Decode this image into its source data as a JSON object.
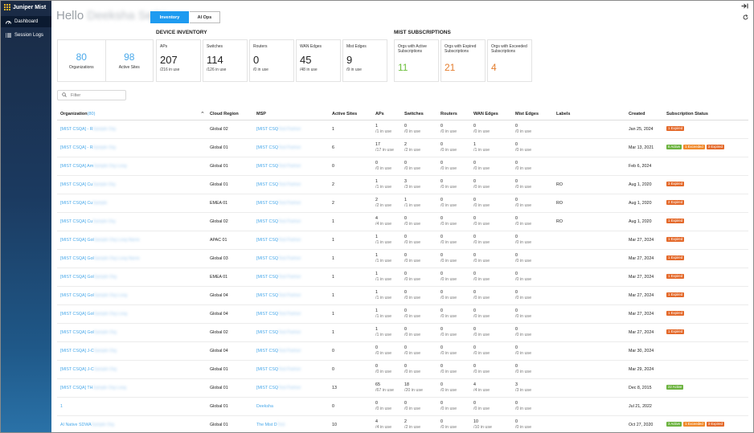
{
  "app": {
    "brand": "Juniper Mist"
  },
  "sidebar": {
    "items": [
      {
        "label": "Dashboard",
        "icon": "gauge-icon",
        "active": true
      },
      {
        "label": "Session Logs",
        "icon": "list-icon",
        "active": false
      }
    ]
  },
  "header": {
    "greeting": "Hello",
    "greeting_name": "Deeksha Sethi",
    "tabs": [
      {
        "label": "Inventory",
        "active": true
      },
      {
        "label": "AI Ops",
        "active": false
      }
    ],
    "icons": {
      "collapse": "collapse-right-icon",
      "refresh": "refresh-icon"
    }
  },
  "summary": {
    "organizations": {
      "value": "80",
      "label": "Organizations"
    },
    "active_sites": {
      "value": "98",
      "label": "Active Sites"
    }
  },
  "device_inventory": {
    "title": "DEVICE INVENTORY",
    "cards": [
      {
        "label": "APs",
        "value": "207",
        "sub": "/216 in use"
      },
      {
        "label": "Switches",
        "value": "114",
        "sub": "/126 in use"
      },
      {
        "label": "Routers",
        "value": "0",
        "sub": "/0 in use"
      },
      {
        "label": "WAN Edges",
        "value": "45",
        "sub": "/48 in use"
      },
      {
        "label": "Mist Edges",
        "value": "9",
        "sub": "/9 in use"
      }
    ]
  },
  "subscriptions": {
    "title": "MIST SUBSCRIPTIONS",
    "cards": [
      {
        "label": "Orgs with Active Subscriptions",
        "value": "11",
        "color": "#6cbf3b"
      },
      {
        "label": "Orgs with Expired Subscriptions",
        "value": "21",
        "color": "#e47d2e"
      },
      {
        "label": "Orgs with Exceeded Subscriptions",
        "value": "4",
        "color": "#e47d2e"
      }
    ]
  },
  "filter": {
    "placeholder": "Filter"
  },
  "table": {
    "headers": {
      "org": "Organization",
      "org_count": "(80)",
      "region": "Cloud Region",
      "msp": "MSP",
      "sites": "Active Sites",
      "aps": "APs",
      "switches": "Switches",
      "routers": "Routers",
      "wan": "WAN Edges",
      "mist": "Mist Edges",
      "labels": "Labels",
      "created": "Created",
      "status": "Subscription Status"
    },
    "rows": [
      {
        "org": "[MIST CSQA] - R",
        "org_blur": "Sample Org",
        "region": "Global 02",
        "msp": "[MIST CSQ",
        "msp_blur": "Test Partner",
        "sites": "1",
        "aps": [
          "1",
          "/1 in use"
        ],
        "switches": [
          "0",
          "/0 in use"
        ],
        "routers": [
          "0",
          "/0 in use"
        ],
        "wan": [
          "0",
          "/0 in use"
        ],
        "mist": [
          "0",
          "/0 in use"
        ],
        "labels": "",
        "created": "Jan 25, 2024",
        "badges": [
          {
            "text": "1 Expired",
            "kind": "exp"
          }
        ]
      },
      {
        "org": "[MIST CSQA] - R",
        "org_blur": "Sample Org",
        "region": "Global 01",
        "msp": "[MIST CSQ",
        "msp_blur": "Test Partner",
        "sites": "6",
        "aps": [
          "17",
          "/17 in use"
        ],
        "switches": [
          "2",
          "/2 in use"
        ],
        "routers": [
          "0",
          "/0 in use"
        ],
        "wan": [
          "1",
          "/1 in use"
        ],
        "mist": [
          "0",
          "/0 in use"
        ],
        "labels": "",
        "created": "Mar 13, 2021",
        "badges": [
          {
            "text": "6 Active",
            "kind": "act"
          },
          {
            "text": "1 Exceeded",
            "kind": "exc"
          },
          {
            "text": "3 Expired",
            "kind": "exp"
          }
        ]
      },
      {
        "org": "[MIST CSQA] Am",
        "org_blur": "Sample Org Long",
        "region": "Global 01",
        "msp": "[MIST CSQ",
        "msp_blur": "Test Partner",
        "sites": "0",
        "aps": [
          "0",
          "/0 in use"
        ],
        "switches": [
          "0",
          "/0 in use"
        ],
        "routers": [
          "0",
          "/0 in use"
        ],
        "wan": [
          "0",
          "/0 in use"
        ],
        "mist": [
          "0",
          "/0 in use"
        ],
        "labels": "",
        "created": "Feb 6, 2024",
        "badges": []
      },
      {
        "org": "[MIST CSQA] Cu",
        "org_blur": "Sample Org",
        "region": "Global 01",
        "msp": "[MIST CSQ",
        "msp_blur": "Test Partner",
        "sites": "2",
        "aps": [
          "1",
          "/1 in use"
        ],
        "switches": [
          "3",
          "/3 in use"
        ],
        "routers": [
          "0",
          "/0 in use"
        ],
        "wan": [
          "0",
          "/0 in use"
        ],
        "mist": [
          "0",
          "/0 in use"
        ],
        "labels": "RO",
        "created": "Aug 1, 2020",
        "badges": [
          {
            "text": "3 Expired",
            "kind": "exp"
          }
        ]
      },
      {
        "org": "[MIST CSQA] Cu",
        "org_blur": "Sample",
        "region": "EMEA 01",
        "msp": "[MIST CSQ",
        "msp_blur": "Test Partner",
        "sites": "2",
        "aps": [
          "2",
          "/2 in use"
        ],
        "switches": [
          "1",
          "/1 in use"
        ],
        "routers": [
          "0",
          "/0 in use"
        ],
        "wan": [
          "0",
          "/0 in use"
        ],
        "mist": [
          "0",
          "/0 in use"
        ],
        "labels": "RO",
        "created": "Aug 1, 2020",
        "badges": [
          {
            "text": "2 Expired",
            "kind": "exp"
          }
        ]
      },
      {
        "org": "[MIST CSQA] Cu",
        "org_blur": "Sample Org",
        "region": "Global 02",
        "msp": "[MIST CSQ",
        "msp_blur": "Test Partner",
        "sites": "1",
        "aps": [
          "4",
          "/4 in use"
        ],
        "switches": [
          "0",
          "/0 in use"
        ],
        "routers": [
          "0",
          "/0 in use"
        ],
        "wan": [
          "0",
          "/0 in use"
        ],
        "mist": [
          "0",
          "/0 in use"
        ],
        "labels": "RO",
        "created": "Aug 1, 2020",
        "badges": [
          {
            "text": "1 Expired",
            "kind": "exp"
          }
        ]
      },
      {
        "org": "[MIST CSQA] Gol",
        "org_blur": "Sample Org Long Name",
        "region": "APAC 01",
        "msp": "[MIST CSQ",
        "msp_blur": "Test Partner",
        "sites": "1",
        "aps": [
          "1",
          "/1 in use"
        ],
        "switches": [
          "0",
          "/0 in use"
        ],
        "routers": [
          "0",
          "/0 in use"
        ],
        "wan": [
          "0",
          "/0 in use"
        ],
        "mist": [
          "0",
          "/0 in use"
        ],
        "labels": "",
        "created": "Mar 27, 2024",
        "badges": [
          {
            "text": "1 Expired",
            "kind": "exp"
          }
        ]
      },
      {
        "org": "[MIST CSQA] Gol",
        "org_blur": "Sample Org Long Name",
        "region": "Global 03",
        "msp": "[MIST CSQ",
        "msp_blur": "Test Partner",
        "sites": "1",
        "aps": [
          "1",
          "/1 in use"
        ],
        "switches": [
          "0",
          "/0 in use"
        ],
        "routers": [
          "0",
          "/0 in use"
        ],
        "wan": [
          "0",
          "/0 in use"
        ],
        "mist": [
          "0",
          "/0 in use"
        ],
        "labels": "",
        "created": "Mar 27, 2024",
        "badges": [
          {
            "text": "1 Expired",
            "kind": "exp"
          }
        ]
      },
      {
        "org": "[MIST CSQA] Gol",
        "org_blur": "Sample Org",
        "region": "EMEA 01",
        "msp": "[MIST CSQ",
        "msp_blur": "Test Partner",
        "sites": "1",
        "aps": [
          "1",
          "/1 in use"
        ],
        "switches": [
          "0",
          "/0 in use"
        ],
        "routers": [
          "0",
          "/0 in use"
        ],
        "wan": [
          "0",
          "/0 in use"
        ],
        "mist": [
          "0",
          "/0 in use"
        ],
        "labels": "",
        "created": "Mar 27, 2024",
        "badges": [
          {
            "text": "1 Expired",
            "kind": "exp"
          }
        ]
      },
      {
        "org": "[MIST CSQA] Gol",
        "org_blur": "Sample Org Long",
        "region": "Global 04",
        "msp": "[MIST CSQ",
        "msp_blur": "Test Partner",
        "sites": "1",
        "aps": [
          "1",
          "/1 in use"
        ],
        "switches": [
          "0",
          "/0 in use"
        ],
        "routers": [
          "0",
          "/0 in use"
        ],
        "wan": [
          "0",
          "/0 in use"
        ],
        "mist": [
          "0",
          "/0 in use"
        ],
        "labels": "",
        "created": "Mar 27, 2024",
        "badges": [
          {
            "text": "1 Expired",
            "kind": "exp"
          }
        ]
      },
      {
        "org": "[MIST CSQA] Gol",
        "org_blur": "Sample Org Long",
        "region": "Global 04",
        "msp": "[MIST CSQ",
        "msp_blur": "Test Partner",
        "sites": "1",
        "aps": [
          "1",
          "/1 in use"
        ],
        "switches": [
          "0",
          "/0 in use"
        ],
        "routers": [
          "0",
          "/0 in use"
        ],
        "wan": [
          "0",
          "/0 in use"
        ],
        "mist": [
          "0",
          "/0 in use"
        ],
        "labels": "",
        "created": "Mar 27, 2024",
        "badges": [
          {
            "text": "1 Expired",
            "kind": "exp"
          }
        ]
      },
      {
        "org": "[MIST CSQA] Gol",
        "org_blur": "Sample Org",
        "region": "Global 02",
        "msp": "[MIST CSQ",
        "msp_blur": "Test Partner",
        "sites": "1",
        "aps": [
          "1",
          "/1 in use"
        ],
        "switches": [
          "0",
          "/0 in use"
        ],
        "routers": [
          "0",
          "/0 in use"
        ],
        "wan": [
          "0",
          "/0 in use"
        ],
        "mist": [
          "0",
          "/0 in use"
        ],
        "labels": "",
        "created": "Mar 27, 2024",
        "badges": [
          {
            "text": "1 Expired",
            "kind": "exp"
          }
        ]
      },
      {
        "org": "[MIST CSQA] J-C",
        "org_blur": "Sample Org",
        "region": "Global 04",
        "msp": "[MIST CSQ",
        "msp_blur": "Test Partner",
        "sites": "0",
        "aps": [
          "0",
          "/0 in use"
        ],
        "switches": [
          "0",
          "/0 in use"
        ],
        "routers": [
          "0",
          "/0 in use"
        ],
        "wan": [
          "0",
          "/0 in use"
        ],
        "mist": [
          "0",
          "/0 in use"
        ],
        "labels": "",
        "created": "Mar 30, 2024",
        "badges": []
      },
      {
        "org": "[MIST CSQA] J-C",
        "org_blur": "Sample Org",
        "region": "Global 01",
        "msp": "[MIST CSQ",
        "msp_blur": "Test Partner",
        "sites": "0",
        "aps": [
          "0",
          "/0 in use"
        ],
        "switches": [
          "0",
          "/0 in use"
        ],
        "routers": [
          "0",
          "/0 in use"
        ],
        "wan": [
          "0",
          "/0 in use"
        ],
        "mist": [
          "0",
          "/0 in use"
        ],
        "labels": "",
        "created": "Mar 29, 2024",
        "badges": []
      },
      {
        "org": "[MIST CSQA] TH",
        "org_blur": "Sample Org Long",
        "region": "Global 01",
        "msp": "[MIST CSQ",
        "msp_blur": "Test Partner",
        "sites": "13",
        "aps": [
          "65",
          "/67 in use"
        ],
        "switches": [
          "18",
          "/20 in use"
        ],
        "routers": [
          "0",
          "/0 in use"
        ],
        "wan": [
          "4",
          "/4 in use"
        ],
        "mist": [
          "3",
          "/3 in use"
        ],
        "labels": "",
        "created": "Dec 8, 2015",
        "badges": [
          {
            "text": "22 Active",
            "kind": "act"
          }
        ]
      },
      {
        "org": "1",
        "org_blur": "",
        "region": "Global 01",
        "msp": "Deeksha",
        "msp_blur": "",
        "sites": "0",
        "aps": [
          "0",
          "/0 in use"
        ],
        "switches": [
          "0",
          "/0 in use"
        ],
        "routers": [
          "0",
          "/0 in use"
        ],
        "wan": [
          "0",
          "/0 in use"
        ],
        "mist": [
          "0",
          "/0 in use"
        ],
        "labels": "",
        "created": "Jul 21, 2022",
        "badges": []
      },
      {
        "org": "AI Native SDWA",
        "org_blur": "Sample Org",
        "region": "Global 01",
        "msp": "The Mist D",
        "msp_blur": "Test",
        "sites": "10",
        "aps": [
          "4",
          "/4 in use"
        ],
        "switches": [
          "2",
          "/2 in use"
        ],
        "routers": [
          "0",
          "/0 in use"
        ],
        "wan": [
          "10",
          "/10 in use"
        ],
        "mist": [
          "0",
          "/0 in use"
        ],
        "labels": "",
        "created": "Oct 27, 2020",
        "badges": [
          {
            "text": "3 Active",
            "kind": "act"
          },
          {
            "text": "1 Exceeded",
            "kind": "exc"
          },
          {
            "text": "3 Expired",
            "kind": "exp"
          }
        ]
      }
    ]
  }
}
